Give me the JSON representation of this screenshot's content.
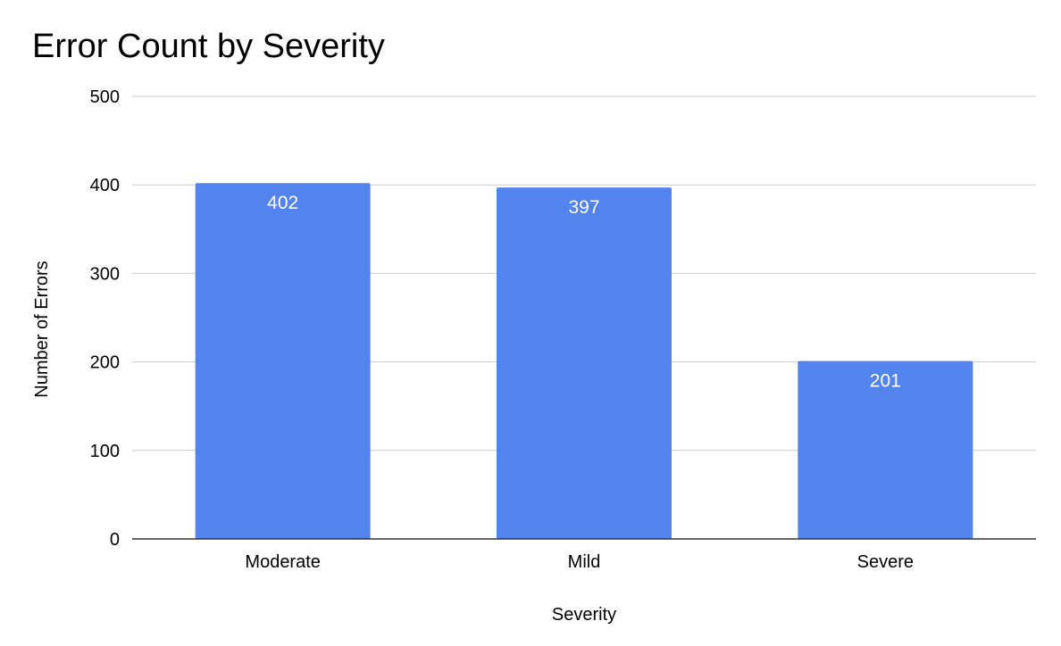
{
  "chart_data": {
    "type": "bar",
    "title": "Error Count by Severity",
    "xlabel": "Severity",
    "ylabel": "Number of Errors",
    "categories": [
      "Moderate",
      "Mild",
      "Severe"
    ],
    "values": [
      402,
      397,
      201
    ],
    "data_labels": [
      "402",
      "397",
      "201"
    ],
    "ylim": [
      0,
      500
    ],
    "yticks": [
      0,
      100,
      200,
      300,
      400,
      500
    ],
    "ytick_labels": [
      "0",
      "100",
      "200",
      "300",
      "400",
      "500"
    ],
    "grid": true,
    "legend": "none",
    "bar_color": "#5383EC",
    "grid_color": "#CCCCCC",
    "axis_color": "#333333"
  }
}
